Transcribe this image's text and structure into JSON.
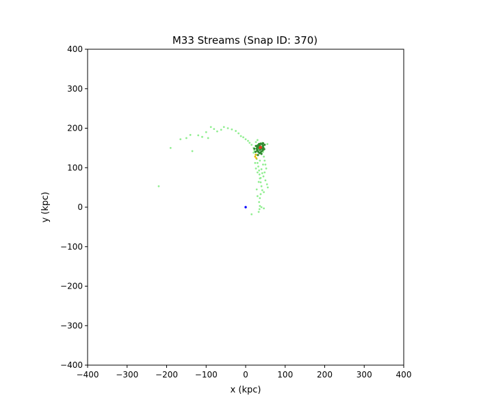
{
  "chart_data": {
    "type": "scatter",
    "title": "M33 Streams (Snap ID: 370)",
    "xlabel": "x (kpc)",
    "ylabel": "y (kpc)",
    "xlim": [
      -400,
      400
    ],
    "ylim": [
      -400,
      400
    ],
    "xticks": [
      -400,
      -300,
      -200,
      -100,
      0,
      100,
      200,
      300,
      400
    ],
    "yticks": [
      -400,
      -300,
      -200,
      -100,
      0,
      100,
      200,
      300,
      400
    ],
    "xtick_labels": [
      "−400",
      "−300",
      "−200",
      "−100",
      "0",
      "100",
      "200",
      "300",
      "400"
    ],
    "ytick_labels": [
      "−400",
      "−300",
      "−200",
      "−100",
      "0",
      "100",
      "200",
      "300",
      "400"
    ],
    "grid": false,
    "series": [
      {
        "color": "#90ee90",
        "marker_size": 1.4,
        "points": [
          [
            -220,
            53
          ],
          [
            -190,
            150
          ],
          [
            -165,
            172
          ],
          [
            -150,
            175
          ],
          [
            -140,
            183
          ],
          [
            -135,
            142
          ],
          [
            -120,
            182
          ],
          [
            -110,
            178
          ],
          [
            -100,
            190
          ],
          [
            -95,
            175
          ],
          [
            -88,
            203
          ],
          [
            -80,
            198
          ],
          [
            -72,
            192
          ],
          [
            -62,
            196
          ],
          [
            -55,
            203
          ],
          [
            -45,
            200
          ],
          [
            -35,
            197
          ],
          [
            -25,
            193
          ],
          [
            -18,
            187
          ],
          [
            -12,
            180
          ],
          [
            -6,
            177
          ],
          [
            0,
            172
          ],
          [
            6,
            168
          ],
          [
            10,
            163
          ],
          [
            15,
            158
          ],
          [
            20,
            150
          ],
          [
            22,
            143
          ],
          [
            25,
            133
          ],
          [
            28,
            122
          ],
          [
            30,
            112
          ],
          [
            32,
            103
          ],
          [
            34,
            93
          ],
          [
            35,
            83
          ],
          [
            36,
            73
          ],
          [
            38,
            63
          ],
          [
            40,
            53
          ],
          [
            42,
            43
          ],
          [
            38,
            33
          ],
          [
            36,
            23
          ],
          [
            34,
            13
          ],
          [
            36,
            3
          ],
          [
            35,
            -5
          ],
          [
            33,
            -12
          ],
          [
            15,
            -18
          ],
          [
            40,
            150
          ],
          [
            44,
            140
          ],
          [
            46,
            128
          ],
          [
            48,
            118
          ],
          [
            50,
            108
          ],
          [
            52,
            98
          ],
          [
            48,
            88
          ],
          [
            45,
            78
          ],
          [
            50,
            68
          ],
          [
            54,
            58
          ],
          [
            56,
            50
          ],
          [
            30,
            170
          ],
          [
            42,
            163
          ],
          [
            26,
            165
          ],
          [
            55,
            160
          ],
          [
            20,
            138
          ],
          [
            24,
            112
          ],
          [
            26,
            98
          ],
          [
            30,
            88
          ],
          [
            40,
            96
          ],
          [
            36,
            118
          ],
          [
            44,
            108
          ],
          [
            42,
            86
          ],
          [
            38,
            74
          ],
          [
            33,
            64
          ],
          [
            46,
            38
          ],
          [
            30,
            28
          ],
          [
            28,
            45
          ],
          [
            40,
            0
          ],
          [
            46,
            -3
          ]
        ]
      },
      {
        "color": "#2e8b2e",
        "marker_size": 1.6,
        "points": [
          [
            32,
            140
          ],
          [
            35,
            137
          ],
          [
            38,
            139
          ],
          [
            41,
            142
          ],
          [
            44,
            145
          ],
          [
            45,
            150
          ],
          [
            44,
            155
          ],
          [
            42,
            159
          ],
          [
            38,
            161
          ],
          [
            34,
            160
          ],
          [
            31,
            157
          ],
          [
            29,
            153
          ],
          [
            28,
            148
          ],
          [
            29,
            143
          ],
          [
            36,
            145
          ],
          [
            40,
            152
          ],
          [
            34,
            154
          ],
          [
            38,
            148
          ],
          [
            33,
            150
          ],
          [
            42,
            148
          ],
          [
            36,
            156
          ],
          [
            30,
            145
          ],
          [
            25,
            140
          ],
          [
            47,
            147
          ],
          [
            26,
            155
          ],
          [
            40,
            135
          ],
          [
            48,
            158
          ],
          [
            22,
            148
          ],
          [
            31,
            132
          ],
          [
            44,
            162
          ]
        ]
      },
      {
        "color": "#e6b800",
        "marker_size": 1.4,
        "points": [
          [
            24,
            128
          ],
          [
            27,
            124
          ],
          [
            26,
            133
          ]
        ]
      },
      {
        "color": "#e03c1e",
        "marker_size": 1.7,
        "points": [
          [
            37,
            153
          ],
          [
            39,
            151
          ],
          [
            36,
            150
          ]
        ]
      },
      {
        "color": "#0000ff",
        "marker_size": 1.7,
        "points": [
          [
            0,
            0
          ]
        ]
      }
    ]
  }
}
